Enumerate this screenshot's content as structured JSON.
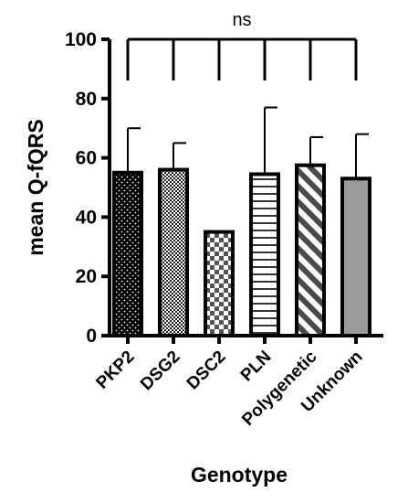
{
  "chart_data": {
    "type": "bar",
    "xlabel": "Genotype",
    "ylabel": "mean Q-fQRS",
    "ylim": [
      0,
      100
    ],
    "yticks": [
      0,
      20,
      40,
      60,
      80,
      100
    ],
    "categories": [
      "PKP2",
      "DSG2",
      "DSC2",
      "PLN",
      "Polygenetic",
      "Unknown"
    ],
    "values": [
      55,
      56,
      35,
      54.5,
      57.5,
      53
    ],
    "error_upper": [
      70,
      65,
      35,
      77,
      67,
      68
    ],
    "patterns": [
      "dots",
      "fine-check",
      "checkerboard",
      "horizontal-lines",
      "diagonal-stripes",
      "solid-gray"
    ],
    "annotation": "ns",
    "grid": false,
    "colors": {
      "bar_stroke": "#000000",
      "gray_fill": "#9a9a9a",
      "pattern_ink": "#000000"
    }
  }
}
